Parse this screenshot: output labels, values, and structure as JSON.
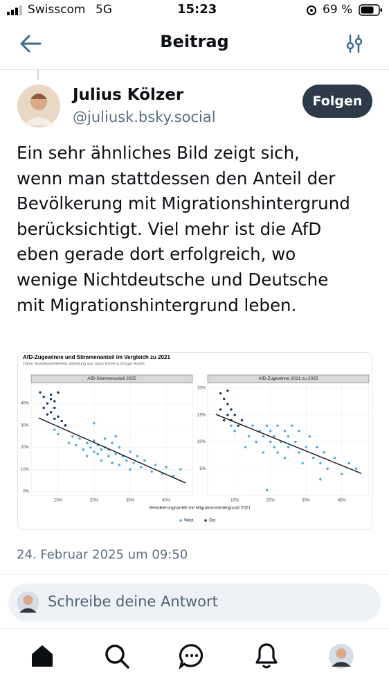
{
  "status_bar": {
    "carrier": "Swisscom",
    "network": "5G",
    "time": "15:23",
    "battery": "69 %"
  },
  "header": {
    "title": "Beitrag"
  },
  "post": {
    "author": "Julius Kölzer",
    "handle": "@juliusk.bsky.social",
    "follow_button": "Folgen",
    "text_lines": [
      "Ein sehr ähnliches Bild zeigt sich,",
      "wenn man stattdessen den Anteil der",
      "Bevölkerung mit Migrationshintergrund",
      "berücksichtigt. Viel mehr ist die AfD",
      "eben gerade dort erfolgreich, wo",
      "wenige Nichtdeutsche und Deutsche",
      "mit Migrationshintergrund leben."
    ],
    "timestamp": "24. Februar 2025 um 09:50"
  },
  "figure": {
    "title": "AfD-Zugewinne und Stimmenanteil im Vergleich zu 2021",
    "source": "Daten: Bundeswahlleiterin, Abbildung von Julius Kölzer & Ansgar Hudde",
    "x_label": "Bevölkerungsanteil mit Migrationshintergrund 2021"
  },
  "chart_data": [
    {
      "type": "scatter",
      "title": "AfD-Stimmenanteil 2025",
      "xlim": [
        2.5,
        47.3
      ],
      "ylim": [
        -1.9,
        49.2
      ],
      "grid": true,
      "xticks": [
        {
          "value": 10,
          "label": "10%"
        },
        {
          "value": 20,
          "label": "20%"
        },
        {
          "value": 30,
          "label": "30%"
        },
        {
          "value": 40,
          "label": "40%"
        }
      ],
      "yticks": [
        {
          "value": 0,
          "label": "0%"
        },
        {
          "value": 10,
          "label": "10%"
        },
        {
          "value": 20,
          "label": "20%"
        },
        {
          "value": 30,
          "label": "30%"
        },
        {
          "value": 40,
          "label": "40%"
        }
      ],
      "series": [
        {
          "name": "West",
          "color": "#4aa8dc",
          "x": [
            9,
            10,
            12,
            13,
            14,
            15,
            16,
            17,
            18,
            18,
            19,
            20,
            20,
            21,
            21,
            22,
            22,
            23,
            23,
            24,
            24,
            25,
            25,
            26,
            27,
            27,
            28,
            29,
            30,
            30,
            31,
            32,
            33,
            34,
            36,
            37,
            39,
            40,
            42,
            44,
            20,
            26
          ],
          "values": [
            28,
            26,
            30,
            22,
            25,
            21,
            24,
            19,
            22,
            16,
            20,
            18,
            23,
            17,
            21,
            19,
            14,
            20,
            24,
            16,
            19,
            22,
            13,
            17,
            20,
            12,
            16,
            14,
            18,
            10,
            13,
            16,
            11,
            14,
            9,
            12,
            8,
            11,
            7,
            10,
            31,
            25
          ]
        },
        {
          "name": "Ost",
          "color": "#14385c",
          "x": [
            5,
            6,
            7,
            8,
            9,
            10,
            6,
            8,
            9,
            10,
            11,
            7,
            12,
            8,
            9
          ],
          "values": [
            45,
            43,
            40,
            44,
            41,
            45,
            38,
            36,
            38,
            34,
            32,
            35,
            30,
            42,
            33
          ]
        }
      ],
      "trend": {
        "color": "#111111",
        "x": [
          4.6,
          45.4
        ],
        "values": [
          33.4,
          3.8
        ]
      }
    },
    {
      "type": "scatter",
      "title": "AfD-Zugewinne 2021 zu 2025",
      "xlim": [
        2.4,
        47.6
      ],
      "ylim": [
        0,
        20.9
      ],
      "grid": true,
      "xticks": [
        {
          "value": 10,
          "label": "10%"
        },
        {
          "value": 20,
          "label": "20%"
        },
        {
          "value": 30,
          "label": "30%"
        },
        {
          "value": 40,
          "label": "40%"
        }
      ],
      "yticks": [
        {
          "value": 5,
          "label": "5%"
        },
        {
          "value": 10,
          "label": "10%"
        },
        {
          "value": 15,
          "label": "15%"
        },
        {
          "value": 20,
          "label": "20%"
        }
      ],
      "series": [
        {
          "name": "West",
          "color": "#4aa8dc",
          "x": [
            9,
            10,
            12,
            13,
            14,
            15,
            16,
            17,
            18,
            18,
            19,
            20,
            20,
            21,
            21,
            22,
            22,
            23,
            24,
            24,
            25,
            25,
            26,
            27,
            28,
            28,
            29,
            30,
            31,
            32,
            33,
            34,
            35,
            36,
            38,
            40,
            42,
            44,
            19,
            34
          ],
          "values": [
            13,
            12,
            14,
            9,
            11,
            13,
            10,
            12,
            8,
            11,
            13,
            10,
            12,
            9,
            11,
            13,
            8,
            10,
            12,
            7,
            11,
            9,
            13,
            10,
            8,
            12,
            6,
            9,
            11,
            7,
            9,
            6,
            8,
            5,
            7,
            4,
            6,
            5,
            1,
            3
          ]
        },
        {
          "name": "Ost",
          "color": "#14385c",
          "x": [
            6,
            7,
            8,
            6,
            8,
            9,
            10,
            7,
            11,
            9,
            12,
            8
          ],
          "values": [
            19,
            18,
            17,
            16,
            15,
            14,
            15,
            14,
            13,
            16,
            14,
            19.5
          ]
        }
      ],
      "trend": {
        "color": "#111111",
        "x": [
          4.7,
          45.5
        ],
        "values": [
          15.1,
          4.1
        ]
      }
    }
  ],
  "reply": {
    "placeholder": "Schreibe deine Antwort"
  }
}
